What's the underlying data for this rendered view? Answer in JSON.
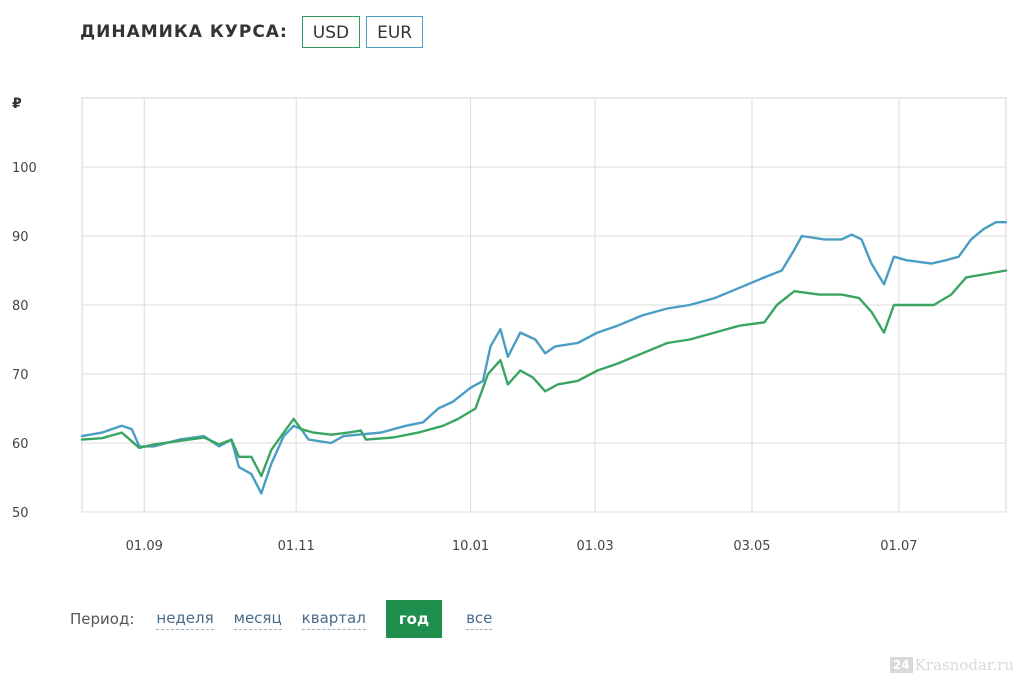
{
  "header": {
    "title": "ДИНАМИКА КУРСА:",
    "buttons": [
      {
        "label": "USD"
      },
      {
        "label": "EUR"
      }
    ]
  },
  "period": {
    "label": "Период:",
    "options": [
      {
        "label": "неделя",
        "active": false
      },
      {
        "label": "месяц",
        "active": false
      },
      {
        "label": "квартал",
        "active": false
      },
      {
        "label": "год",
        "active": true
      },
      {
        "label": "все",
        "active": false
      }
    ]
  },
  "watermark": {
    "badge": "24",
    "text": "Krasnodar.ru"
  },
  "colors": {
    "usd": "#3aa563",
    "eur": "#4a9ec4",
    "active": "#1f8f4e"
  },
  "chart_data": {
    "type": "line",
    "ylabel": "₽",
    "ylim": [
      50,
      110
    ],
    "yticks": [
      50,
      60,
      70,
      80,
      90,
      100
    ],
    "xlim": [
      "2021-08-07",
      "2022-08-13"
    ],
    "xticks": [
      {
        "date": "2021-09-01",
        "label": "01.09"
      },
      {
        "date": "2021-11-01",
        "label": "01.11"
      },
      {
        "date": "2022-01-10",
        "label": "10.01"
      },
      {
        "date": "2022-03-01",
        "label": "01.03"
      },
      {
        "date": "2022-05-03",
        "label": "03.05"
      },
      {
        "date": "2022-07-01",
        "label": "01.07"
      }
    ],
    "grid": true,
    "series": [
      {
        "color": "#4a9ec4",
        "points": [
          [
            "2021-08-07",
            61
          ],
          [
            "2021-08-15",
            61.5
          ],
          [
            "2021-08-23",
            62.5
          ],
          [
            "2021-08-27",
            62
          ],
          [
            "2021-08-30",
            59.5
          ],
          [
            "2021-09-05",
            59.5
          ],
          [
            "2021-09-15",
            60.5
          ],
          [
            "2021-09-25",
            61
          ],
          [
            "2021-10-01",
            59.5
          ],
          [
            "2021-10-06",
            60.5
          ],
          [
            "2021-10-09",
            56.5
          ],
          [
            "2021-10-14",
            55.5
          ],
          [
            "2021-10-18",
            52.7
          ],
          [
            "2021-10-22",
            57
          ],
          [
            "2021-10-27",
            61
          ],
          [
            "2021-10-31",
            62.5
          ],
          [
            "2021-11-03",
            62
          ],
          [
            "2021-11-06",
            60.5
          ],
          [
            "2021-11-15",
            60
          ],
          [
            "2021-11-20",
            61
          ],
          [
            "2021-12-05",
            61.5
          ],
          [
            "2021-12-15",
            62.5
          ],
          [
            "2021-12-22",
            63
          ],
          [
            "2021-12-28",
            65
          ],
          [
            "2022-01-03",
            66
          ],
          [
            "2022-01-10",
            68
          ],
          [
            "2022-01-15",
            69
          ],
          [
            "2022-01-18",
            74
          ],
          [
            "2022-01-22",
            76.5
          ],
          [
            "2022-01-25",
            72.5
          ],
          [
            "2022-01-30",
            76
          ],
          [
            "2022-02-05",
            75
          ],
          [
            "2022-02-09",
            73
          ],
          [
            "2022-02-13",
            74
          ],
          [
            "2022-02-22",
            74.5
          ],
          [
            "2022-03-02",
            76
          ],
          [
            "2022-03-10",
            77
          ],
          [
            "2022-03-20",
            78.5
          ],
          [
            "2022-03-30",
            79.5
          ],
          [
            "2022-04-08",
            80
          ],
          [
            "2022-04-18",
            81
          ],
          [
            "2022-04-28",
            82.5
          ],
          [
            "2022-05-08",
            84
          ],
          [
            "2022-05-15",
            85
          ],
          [
            "2022-05-20",
            88
          ],
          [
            "2022-05-23",
            90
          ],
          [
            "2022-06-01",
            89.5
          ],
          [
            "2022-06-08",
            89.5
          ],
          [
            "2022-06-12",
            90.2
          ],
          [
            "2022-06-16",
            89.5
          ],
          [
            "2022-06-20",
            86
          ],
          [
            "2022-06-25",
            83
          ],
          [
            "2022-06-29",
            87
          ],
          [
            "2022-07-04",
            86.5
          ],
          [
            "2022-07-14",
            86
          ],
          [
            "2022-07-20",
            86.5
          ],
          [
            "2022-07-25",
            87
          ],
          [
            "2022-07-30",
            89.5
          ],
          [
            "2022-08-04",
            91
          ],
          [
            "2022-08-09",
            92
          ],
          [
            "2022-08-13",
            92
          ]
        ]
      },
      {
        "color": "#3aa563",
        "points": [
          [
            "2021-08-07",
            60.5
          ],
          [
            "2021-08-15",
            60.7
          ],
          [
            "2021-08-23",
            61.5
          ],
          [
            "2021-08-30",
            59.3
          ],
          [
            "2021-09-05",
            59.8
          ],
          [
            "2021-09-15",
            60.3
          ],
          [
            "2021-09-25",
            60.8
          ],
          [
            "2021-10-01",
            59.8
          ],
          [
            "2021-10-06",
            60.5
          ],
          [
            "2021-10-09",
            58
          ],
          [
            "2021-10-14",
            58
          ],
          [
            "2021-10-18",
            55.2
          ],
          [
            "2021-10-22",
            59
          ],
          [
            "2021-10-27",
            61.5
          ],
          [
            "2021-10-31",
            63.5
          ],
          [
            "2021-11-03",
            62
          ],
          [
            "2021-11-08",
            61.5
          ],
          [
            "2021-11-15",
            61.2
          ],
          [
            "2021-11-22",
            61.5
          ],
          [
            "2021-11-27",
            61.8
          ],
          [
            "2021-11-29",
            60.5
          ],
          [
            "2021-12-10",
            60.8
          ],
          [
            "2021-12-20",
            61.5
          ],
          [
            "2021-12-30",
            62.5
          ],
          [
            "2022-01-05",
            63.5
          ],
          [
            "2022-01-12",
            65
          ],
          [
            "2022-01-17",
            70
          ],
          [
            "2022-01-22",
            72
          ],
          [
            "2022-01-25",
            68.5
          ],
          [
            "2022-01-30",
            70.5
          ],
          [
            "2022-02-04",
            69.5
          ],
          [
            "2022-02-09",
            67.5
          ],
          [
            "2022-02-14",
            68.5
          ],
          [
            "2022-02-22",
            69
          ],
          [
            "2022-03-02",
            70.5
          ],
          [
            "2022-03-10",
            71.5
          ],
          [
            "2022-03-20",
            73
          ],
          [
            "2022-03-30",
            74.5
          ],
          [
            "2022-04-08",
            75
          ],
          [
            "2022-04-18",
            76
          ],
          [
            "2022-04-28",
            77
          ],
          [
            "2022-05-08",
            77.5
          ],
          [
            "2022-05-13",
            80
          ],
          [
            "2022-05-20",
            82
          ],
          [
            "2022-05-30",
            81.5
          ],
          [
            "2022-06-08",
            81.5
          ],
          [
            "2022-06-15",
            81
          ],
          [
            "2022-06-20",
            79
          ],
          [
            "2022-06-25",
            76
          ],
          [
            "2022-06-29",
            80
          ],
          [
            "2022-07-05",
            80
          ],
          [
            "2022-07-15",
            80
          ],
          [
            "2022-07-22",
            81.5
          ],
          [
            "2022-07-28",
            84
          ],
          [
            "2022-08-05",
            84.5
          ],
          [
            "2022-08-13",
            85
          ]
        ]
      }
    ]
  }
}
